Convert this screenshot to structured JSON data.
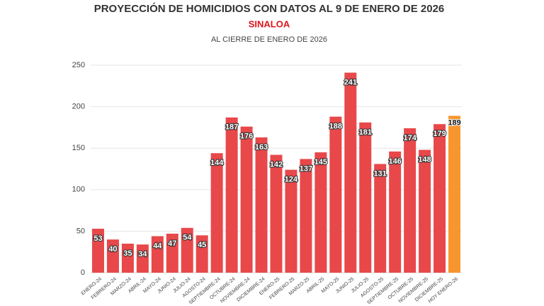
{
  "chart_data": {
    "type": "bar",
    "title": "PROYECCIÓN DE HOMICIDIOS CON DATOS AL 9 DE ENERO DE 2026",
    "subtitle": "SINALOA",
    "note": "AL CIERRE DE ENERO DE 2026",
    "categories": [
      "ENERO-24",
      "FEBRERO-24",
      "MARZO-24",
      "ABRIL-24",
      "MAYO-24",
      "JUNIO-24",
      "JULIO-24",
      "AGOSTO-24",
      "SEPTIEMBRE-24",
      "OCTUBRE-24",
      "NOVIEMBRE-24",
      "DICIEMBRE-24",
      "ENERO-25",
      "FEBRERO-25",
      "MARZO-25",
      "ABRIL-25",
      "MAYO-25",
      "JUNIO-25",
      "JULIO-25",
      "AGOSTO-25",
      "SEPTIEMBRE-25",
      "OCTUBRE-25",
      "NOVIEMBRE-25",
      "DICIEMBRE-25",
      "HOY ENERO-26"
    ],
    "values": [
      53,
      40,
      35,
      34,
      44,
      47,
      54,
      45,
      144,
      187,
      176,
      163,
      142,
      124,
      137,
      145,
      188,
      241,
      181,
      131,
      146,
      174,
      148,
      179,
      189
    ],
    "colors": [
      "#e8484a",
      "#e8484a",
      "#e8484a",
      "#e8484a",
      "#e8484a",
      "#e8484a",
      "#e8484a",
      "#e8484a",
      "#e8484a",
      "#e8484a",
      "#e8484a",
      "#e8484a",
      "#e8484a",
      "#e8484a",
      "#e8484a",
      "#e8484a",
      "#e8484a",
      "#e8484a",
      "#e8484a",
      "#e8484a",
      "#e8484a",
      "#e8484a",
      "#e8484a",
      "#e8484a",
      "#f7962f"
    ],
    "ylim": [
      0,
      250
    ],
    "yticks": [
      0,
      50,
      100,
      150,
      200,
      250
    ],
    "grid": true
  }
}
